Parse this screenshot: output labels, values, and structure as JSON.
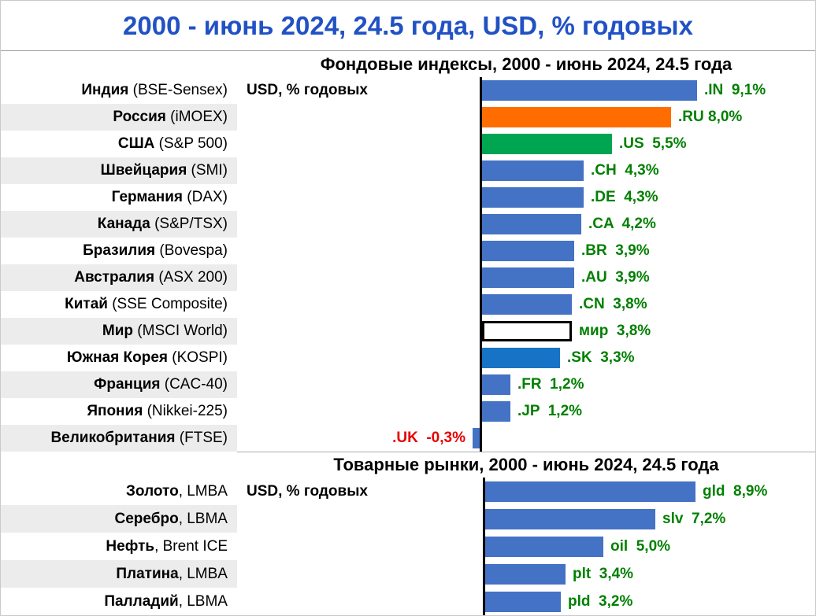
{
  "page_title": "2000 - июнь 2024, 24.5 года, USD, % годовых",
  "colors": {
    "title_blue": "#2151c4",
    "bar_blue": "#4472C4",
    "bar_orange": "#ff6d00",
    "bar_green": "#00a551",
    "bar_korea_blue": "#1673c5",
    "bar_world_fill": "#ffffff",
    "bar_world_border": "#000000",
    "value_green": "#008000",
    "value_red": "#e60000"
  },
  "chart_data": [
    {
      "type": "bar",
      "title": "Фондовые индексы, 2000 - июнь 2024, 24.5 года",
      "axis_label": "USD, % годовых",
      "ylabel": "",
      "xlabel": "% годовых (USD)",
      "xlim": [
        -1,
        14
      ],
      "legend": "none",
      "rows": [
        {
          "name": "Индия",
          "detail": " (BSE-Sensex)",
          "tag": ".IN",
          "value": 9.1,
          "value_label": ".IN  9,1%",
          "color": "blue"
        },
        {
          "name": "Россия",
          "detail": " (iMOEX)",
          "tag": ".RU",
          "value": 8.0,
          "value_label": ".RU 8,0%",
          "color": "orange"
        },
        {
          "name": "США",
          "detail": " (S&P 500)",
          "tag": ".US",
          "value": 5.5,
          "value_label": ".US  5,5%",
          "color": "green"
        },
        {
          "name": "Швейцария",
          "detail": " (SMI)",
          "tag": ".CH",
          "value": 4.3,
          "value_label": ".CH  4,3%",
          "color": "blue"
        },
        {
          "name": "Германия",
          "detail": " (DAX)",
          "tag": ".DE",
          "value": 4.3,
          "value_label": ".DE  4,3%",
          "color": "blue"
        },
        {
          "name": "Канада",
          "detail": " (S&P/TSX)",
          "tag": ".CA",
          "value": 4.2,
          "value_label": ".CA  4,2%",
          "color": "blue"
        },
        {
          "name": "Бразилия",
          "detail": " (Bovespa)",
          "tag": ".BR",
          "value": 3.9,
          "value_label": ".BR  3,9%",
          "color": "blue"
        },
        {
          "name": "Австралия",
          "detail": " (ASX 200)",
          "tag": ".AU",
          "value": 3.9,
          "value_label": ".AU  3,9%",
          "color": "blue"
        },
        {
          "name": "Китай",
          "detail": " (SSE Composite)",
          "tag": ".CN",
          "value": 3.8,
          "value_label": ".CN  3,8%",
          "color": "blue"
        },
        {
          "name": "Мир",
          "detail": " (MSCI World)",
          "tag": "мир",
          "value": 3.8,
          "value_label": "мир  3,8%",
          "color": "white"
        },
        {
          "name": "Южная Корея",
          "detail": " (KOSPI)",
          "tag": ".SK",
          "value": 3.3,
          "value_label": ".SK  3,3%",
          "color": "skblue"
        },
        {
          "name": "Франция",
          "detail": " (CAC-40)",
          "tag": ".FR",
          "value": 1.2,
          "value_label": ".FR  1,2%",
          "color": "blue"
        },
        {
          "name": "Япония",
          "detail": " (Nikkei-225)",
          "tag": ".JP",
          "value": 1.2,
          "value_label": ".JP  1,2%",
          "color": "blue"
        },
        {
          "name": "Великобритания",
          "detail": " (FTSE)",
          "tag": ".UK",
          "value": -0.3,
          "value_label": ".UK  -0,3%",
          "color": "blue",
          "negative": true
        }
      ]
    },
    {
      "type": "bar",
      "title": "Товарные рынки, 2000 - июнь 2024, 24.5 года",
      "axis_label": "USD, % годовых",
      "ylabel": "",
      "xlabel": "% годовых (USD)",
      "xlim": [
        -1,
        14
      ],
      "legend": "none",
      "rows": [
        {
          "name": "Золото",
          "detail": ", LMBA",
          "tag": "gld",
          "value": 8.9,
          "value_label": "gld  8,9%",
          "color": "blue"
        },
        {
          "name": "Серебро",
          "detail": ", LBMA",
          "tag": "slv",
          "value": 7.2,
          "value_label": "slv  7,2%",
          "color": "blue"
        },
        {
          "name": "Нефть",
          "detail": ", Brent ICE",
          "tag": "oil",
          "value": 5.0,
          "value_label": "oil  5,0%",
          "color": "blue"
        },
        {
          "name": "Платина",
          "detail": ", LMBA",
          "tag": "plt",
          "value": 3.4,
          "value_label": "plt  3,4%",
          "color": "blue"
        },
        {
          "name": "Палладий",
          "detail": ", LBMA",
          "tag": "pld",
          "value": 3.2,
          "value_label": "pld  3,2%",
          "color": "blue"
        }
      ]
    }
  ]
}
